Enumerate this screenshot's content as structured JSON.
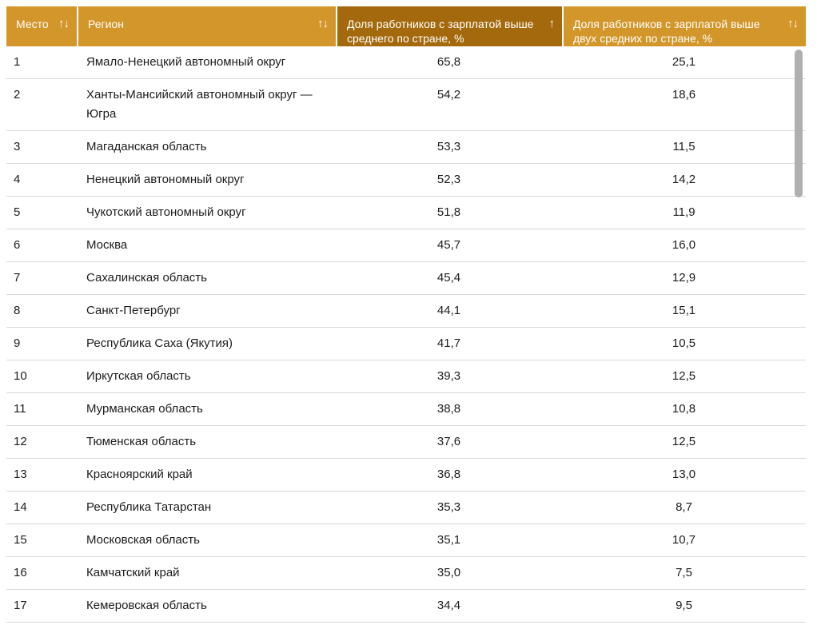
{
  "colors": {
    "header_bg": "#d2962a",
    "header_sorted_bg": "#a4690d",
    "header_text": "#ffffff",
    "text": "#1c1c1c",
    "divider": "#d8d8d8",
    "scrollbar": "#afafaf"
  },
  "table": {
    "columns": [
      {
        "key": "place",
        "label": "Место",
        "sort_icon": "↑↓",
        "sorted": false
      },
      {
        "key": "region",
        "label": "Регион",
        "sort_icon": "↑↓",
        "sorted": false
      },
      {
        "key": "above_avg",
        "label": "Доля работников с зарплатой выше среднего по стране, %",
        "sort_icon": "↑",
        "sorted": true
      },
      {
        "key": "above_2x",
        "label": "Доля работников с зарплатой выше двух средних по стране, %",
        "sort_icon": "↑↓",
        "sorted": false
      }
    ],
    "rows": [
      {
        "place": "1",
        "region": "Ямало-Ненецкий автономный округ",
        "above_avg": "65,8",
        "above_2x": "25,1"
      },
      {
        "place": "2",
        "region": "Ханты-Мансийский автономный округ — Югра",
        "above_avg": "54,2",
        "above_2x": "18,6"
      },
      {
        "place": "3",
        "region": "Магаданская область",
        "above_avg": "53,3",
        "above_2x": "11,5"
      },
      {
        "place": "4",
        "region": "Ненецкий автономный округ",
        "above_avg": "52,3",
        "above_2x": "14,2"
      },
      {
        "place": "5",
        "region": "Чукотский автономный округ",
        "above_avg": "51,8",
        "above_2x": "11,9"
      },
      {
        "place": "6",
        "region": "Москва",
        "above_avg": "45,7",
        "above_2x": "16,0"
      },
      {
        "place": "7",
        "region": "Сахалинская область",
        "above_avg": "45,4",
        "above_2x": "12,9"
      },
      {
        "place": "8",
        "region": "Санкт-Петербург",
        "above_avg": "44,1",
        "above_2x": "15,1"
      },
      {
        "place": "9",
        "region": "Республика Саха (Якутия)",
        "above_avg": "41,7",
        "above_2x": "10,5"
      },
      {
        "place": "10",
        "region": "Иркутская область",
        "above_avg": "39,3",
        "above_2x": "12,5"
      },
      {
        "place": "11",
        "region": "Мурманская область",
        "above_avg": "38,8",
        "above_2x": "10,8"
      },
      {
        "place": "12",
        "region": "Тюменская область",
        "above_avg": "37,6",
        "above_2x": "12,5"
      },
      {
        "place": "13",
        "region": "Красноярский край",
        "above_avg": "36,8",
        "above_2x": "13,0"
      },
      {
        "place": "14",
        "region": "Республика Татарстан",
        "above_avg": "35,3",
        "above_2x": "8,7"
      },
      {
        "place": "15",
        "region": "Московская область",
        "above_avg": "35,1",
        "above_2x": "10,7"
      },
      {
        "place": "16",
        "region": "Камчатский край",
        "above_avg": "35,0",
        "above_2x": "7,5"
      },
      {
        "place": "17",
        "region": "Кемеровская область",
        "above_avg": "34,4",
        "above_2x": "9,5"
      }
    ]
  }
}
